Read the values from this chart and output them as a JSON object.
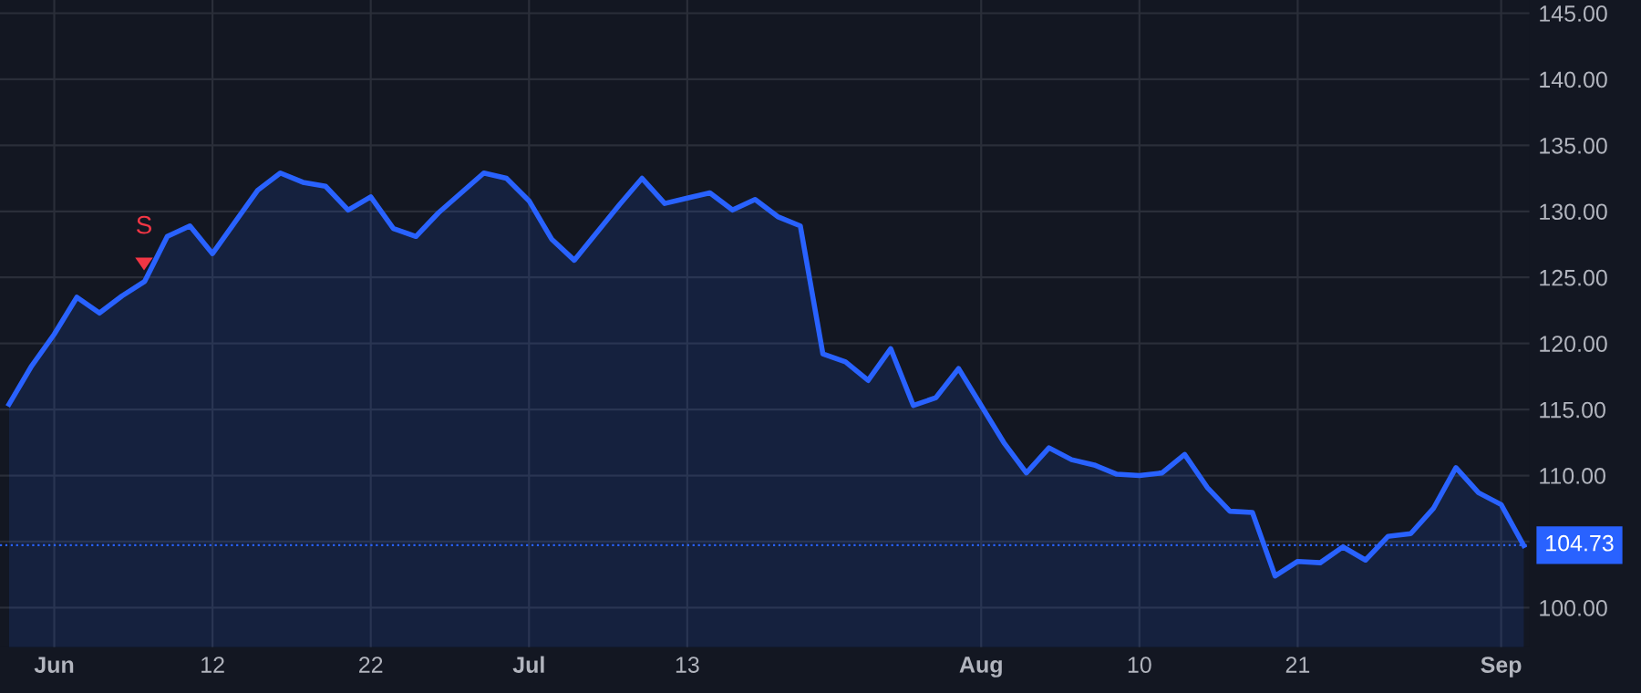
{
  "chart_data": {
    "type": "area",
    "categories": [
      null,
      null,
      "Jun",
      null,
      null,
      null,
      null,
      null,
      null,
      "12",
      null,
      null,
      null,
      null,
      null,
      null,
      "22",
      null,
      null,
      null,
      null,
      null,
      null,
      "Jul",
      null,
      null,
      null,
      null,
      null,
      null,
      "13",
      null,
      null,
      null,
      null,
      null,
      null,
      null,
      null,
      null,
      null,
      null,
      null,
      "Aug",
      null,
      null,
      null,
      null,
      null,
      null,
      "10",
      null,
      null,
      null,
      null,
      null,
      null,
      "21",
      null,
      null,
      null,
      null,
      null,
      null,
      null,
      null,
      "Sep",
      null
    ],
    "series": [
      {
        "color": "#2962ff",
        "values": [
          115.4,
          118.3,
          120.7,
          123.5,
          122.3,
          123.6,
          124.7,
          128.1,
          128.9,
          126.8,
          129.2,
          131.6,
          132.9,
          132.2,
          131.9,
          130.1,
          131.1,
          128.7,
          128.1,
          129.9,
          131.4,
          132.9,
          132.5,
          130.8,
          127.9,
          126.3,
          128.4,
          130.5,
          132.5,
          130.6,
          131.0,
          131.4,
          130.1,
          130.9,
          129.6,
          128.9,
          119.2,
          118.6,
          117.2,
          119.6,
          115.3,
          115.9,
          118.1,
          115.3,
          112.5,
          110.2,
          112.1,
          111.2,
          110.8,
          110.1,
          110.0,
          110.2,
          111.6,
          109.1,
          107.3,
          107.2,
          102.4,
          103.5,
          103.4,
          104.6,
          103.6,
          105.4,
          105.6,
          107.5,
          110.6,
          108.7,
          107.8,
          104.7
        ]
      }
    ],
    "ylim": [
      97,
      146
    ],
    "yticks": [
      {
        "value": 100,
        "label": "100.00"
      },
      {
        "value": 105,
        "label": null
      },
      {
        "value": 110,
        "label": "110.00"
      },
      {
        "value": 115,
        "label": "115.00"
      },
      {
        "value": 120,
        "label": "120.00"
      },
      {
        "value": 125,
        "label": "125.00"
      },
      {
        "value": 130,
        "label": "130.00"
      },
      {
        "value": 135,
        "label": "135.00"
      },
      {
        "value": 140,
        "label": "140.00"
      },
      {
        "value": 145,
        "label": "145.00"
      }
    ],
    "ref_lines": [
      {
        "axis": "y",
        "value": 104.73,
        "label": "104.73",
        "color": "#2962ff",
        "line_style": "dotted"
      }
    ],
    "annotations": [
      "S"
    ],
    "grid": true,
    "line_style": "solid",
    "marker": "none"
  }
}
